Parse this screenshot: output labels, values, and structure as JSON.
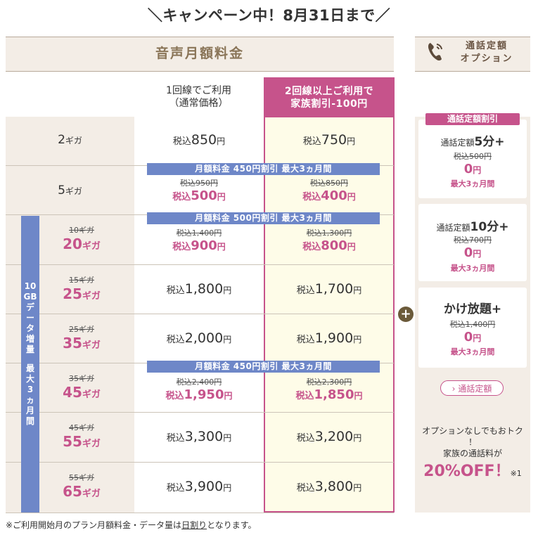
{
  "campaign": {
    "title": "＼キャンペーン中！8月31日まで／"
  },
  "header": {
    "main_title": "音声月額料金",
    "option_title_l1": "通話定額",
    "option_title_l2": "オプション"
  },
  "columns": {
    "normal_l1": "1回線でご利用",
    "normal_l2": "（通常価格）",
    "family_l1": "2回線以上ご利用で",
    "family_l2": "家族割引-100円"
  },
  "vertical_label": [
    "10",
    "GB",
    "デ",
    "ー",
    "タ",
    "増",
    "量",
    "",
    "最",
    "大",
    "3",
    "ヵ",
    "月",
    "間"
  ],
  "banners": {
    "b1": "月額料金 450円割引 最大3ヵ月間",
    "b2": "月額料金 500円割引 最大3ヵ月間",
    "b3": "月額料金 450円割引 最大3ヵ月間"
  },
  "rows": [
    {
      "label_num": "2",
      "label_unit": "ギガ",
      "normal": {
        "tax": "税込",
        "num": "850",
        "yen": "円"
      },
      "family": {
        "tax": "税込",
        "num": "750",
        "yen": "円"
      }
    },
    {
      "label_num": "5",
      "label_unit": "ギガ",
      "normal_old": "税込950円",
      "normal_new": {
        "tax": "税込",
        "num": "500",
        "yen": "円"
      },
      "family_old": "税込850円",
      "family_new": {
        "tax": "税込",
        "num": "400",
        "yen": "円"
      }
    },
    {
      "label_old": "10ギガ",
      "label_num": "20",
      "label_unit": "ギガ",
      "normal_old": "税込1,400円",
      "normal_new": {
        "tax": "税込",
        "num": "900",
        "yen": "円"
      },
      "family_old": "税込1,300円",
      "family_new": {
        "tax": "税込",
        "num": "800",
        "yen": "円"
      }
    },
    {
      "label_old": "15ギガ",
      "label_num": "25",
      "label_unit": "ギガ",
      "normal": {
        "tax": "税込",
        "num": "1,800",
        "yen": "円"
      },
      "family": {
        "tax": "税込",
        "num": "1,700",
        "yen": "円"
      }
    },
    {
      "label_old": "25ギガ",
      "label_num": "35",
      "label_unit": "ギガ",
      "normal": {
        "tax": "税込",
        "num": "2,000",
        "yen": "円"
      },
      "family": {
        "tax": "税込",
        "num": "1,900",
        "yen": "円"
      }
    },
    {
      "label_old": "35ギガ",
      "label_num": "45",
      "label_unit": "ギガ",
      "normal_old": "税込2,400円",
      "normal_new": {
        "tax": "税込",
        "num": "1,950",
        "yen": "円"
      },
      "family_old": "税込2,300円",
      "family_new": {
        "tax": "税込",
        "num": "1,850",
        "yen": "円"
      }
    },
    {
      "label_old": "45ギガ",
      "label_num": "55",
      "label_unit": "ギガ",
      "normal": {
        "tax": "税込",
        "num": "3,300",
        "yen": "円"
      },
      "family": {
        "tax": "税込",
        "num": "3,200",
        "yen": "円"
      }
    },
    {
      "label_old": "55ギガ",
      "label_num": "65",
      "label_unit": "ギガ",
      "normal": {
        "tax": "税込",
        "num": "3,900",
        "yen": "円"
      },
      "family": {
        "tax": "税込",
        "num": "3,800",
        "yen": "円"
      }
    }
  ],
  "options": {
    "badge": "通話定額割引",
    "card1": {
      "prefix": "通話定額",
      "big": "5分+",
      "old": "税込500円",
      "new_num": "0",
      "new_yen": "円",
      "note": "最大3ヵ月間"
    },
    "card2": {
      "prefix": "通話定額",
      "big": "10分+",
      "old": "税込700円",
      "new_num": "0",
      "new_yen": "円",
      "note": "最大3ヵ月間"
    },
    "card3": {
      "big": "かけ放題+",
      "old": "税込1,400円",
      "new_num": "0",
      "new_yen": "円",
      "note": "最大3ヵ月間"
    },
    "link": "通話定額",
    "msg_l1": "オプションなしでもおトク",
    "msg_l2": "！",
    "msg_l3": "家族の通話料が",
    "msg_big": "20%OFF！",
    "msg_note": "※1"
  },
  "footnote": {
    "pre": "※ご利用開始月のプラン月額料金・データ量は",
    "link": "日割り",
    "post": "となります。"
  }
}
